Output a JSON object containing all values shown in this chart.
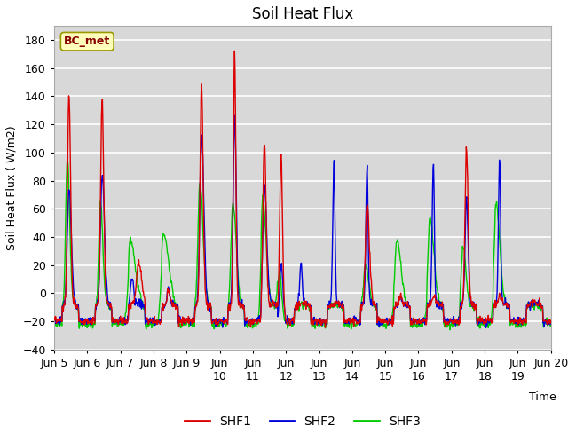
{
  "title": "Soil Heat Flux",
  "ylabel": "Soil Heat Flux ( W/m2)",
  "xlabel": "Time",
  "ylim": [
    -40,
    190
  ],
  "yticks": [
    -40,
    -20,
    0,
    20,
    40,
    60,
    80,
    100,
    120,
    140,
    160,
    180
  ],
  "bg_color": "#d8d8d8",
  "plot_bg_color": "#d8d8d8",
  "grid_color": "white",
  "colors": {
    "SHF1": "#dd0000",
    "SHF2": "#0000dd",
    "SHF3": "#00cc00"
  },
  "legend_label": "BC_met",
  "x_ticks": [
    5,
    6,
    7,
    8,
    9,
    10,
    11,
    12,
    13,
    14,
    15,
    16,
    17,
    18,
    19,
    20
  ],
  "line_width": 1.0
}
